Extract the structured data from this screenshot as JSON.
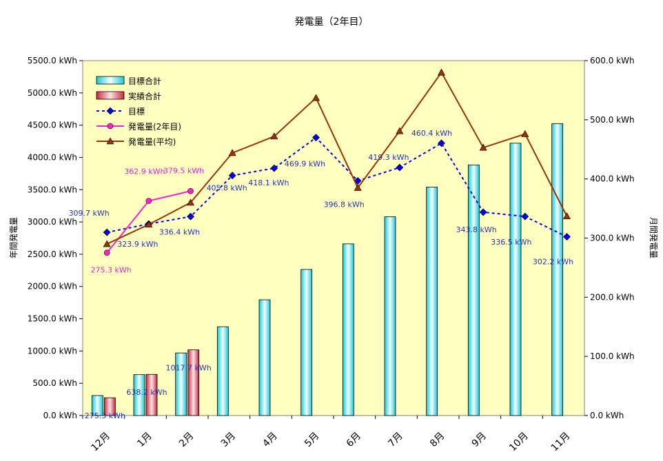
{
  "chart_data": {
    "type": "bar",
    "title": "発電量（2年目）",
    "ylabel": "年間発電量",
    "y2label": "月間発電量",
    "categories": [
      "12月",
      "1月",
      "2月",
      "3月",
      "4月",
      "5月",
      "6月",
      "7月",
      "8月",
      "9月",
      "10月",
      "11月"
    ],
    "ylim": [
      0,
      5500
    ],
    "y2lim": [
      0,
      600
    ],
    "y_ticks": [
      "0.0 kWh",
      "500.0 kWh",
      "1000.0 kWh",
      "1500.0 kWh",
      "2000.0 kWh",
      "2500.0 kWh",
      "3000.0 kWh",
      "3500.0 kWh",
      "4000.0 kWh",
      "4500.0 kWh",
      "5000.0 kWh",
      "5500.0 kWh"
    ],
    "y2_ticks": [
      "0.0 kWh",
      "100.0 kWh",
      "200.0 kWh",
      "300.0 kWh",
      "400.0 kWh",
      "500.0 kWh",
      "600.0 kWh"
    ],
    "legend_position": "top-left",
    "grid": false,
    "plot_background": "#FFFFC0",
    "bar_series": [
      {
        "name": "目標合計",
        "axis": "left",
        "color": "#33E0E8",
        "values": [
          309.7,
          633.6,
          970.0,
          1375.8,
          1793.9,
          2263.8,
          2660.6,
          3079.9,
          3540.3,
          3884.1,
          4220.6,
          4522.8
        ]
      },
      {
        "name": "実績合計",
        "axis": "left",
        "color": "#E05A6A",
        "values": [
          275.3,
          638.2,
          1017.7
        ]
      }
    ],
    "line_series": [
      {
        "name": "目標",
        "axis": "right",
        "color": "#0000EE",
        "dash": true,
        "marker": "diamond",
        "values": [
          309.7,
          323.9,
          336.4,
          405.8,
          418.1,
          469.9,
          396.8,
          419.3,
          460.4,
          343.8,
          336.5,
          302.2
        ],
        "labels": [
          "309.7 kWh",
          "323.9 kWh",
          "336.4 kWh",
          "405.8 kWh",
          "418.1 kWh",
          "469.9 kWh",
          "396.8 kWh",
          "419.3 kWh",
          "460.4 kWh",
          "343.8 kWh",
          "336.5 kWh",
          "302.2 kWh"
        ],
        "label_color": "#2233BB"
      },
      {
        "name": "発電量(2年目)",
        "axis": "right",
        "color": "#FF22CC",
        "dash": false,
        "marker": "circle",
        "values": [
          275.3,
          362.9,
          379.5
        ],
        "labels": [
          "275.3 kWh",
          "362.9 kWh",
          "379.5 kWh"
        ],
        "label_color": "#EE22CC"
      },
      {
        "name": "発電量(平均)",
        "axis": "right",
        "color": "#993300",
        "dash": false,
        "marker": "triangle",
        "values": [
          290,
          323,
          360,
          444,
          472,
          537,
          385,
          481,
          580,
          453,
          476,
          337
        ]
      }
    ],
    "bar_labels": [
      {
        "category_index": 0,
        "text": "275.3 kWh"
      },
      {
        "category_index": 1,
        "text": "638.2 kWh"
      },
      {
        "category_index": 2,
        "text": "1017.7 kWh"
      }
    ],
    "bar_label_color": "#2233BB"
  }
}
